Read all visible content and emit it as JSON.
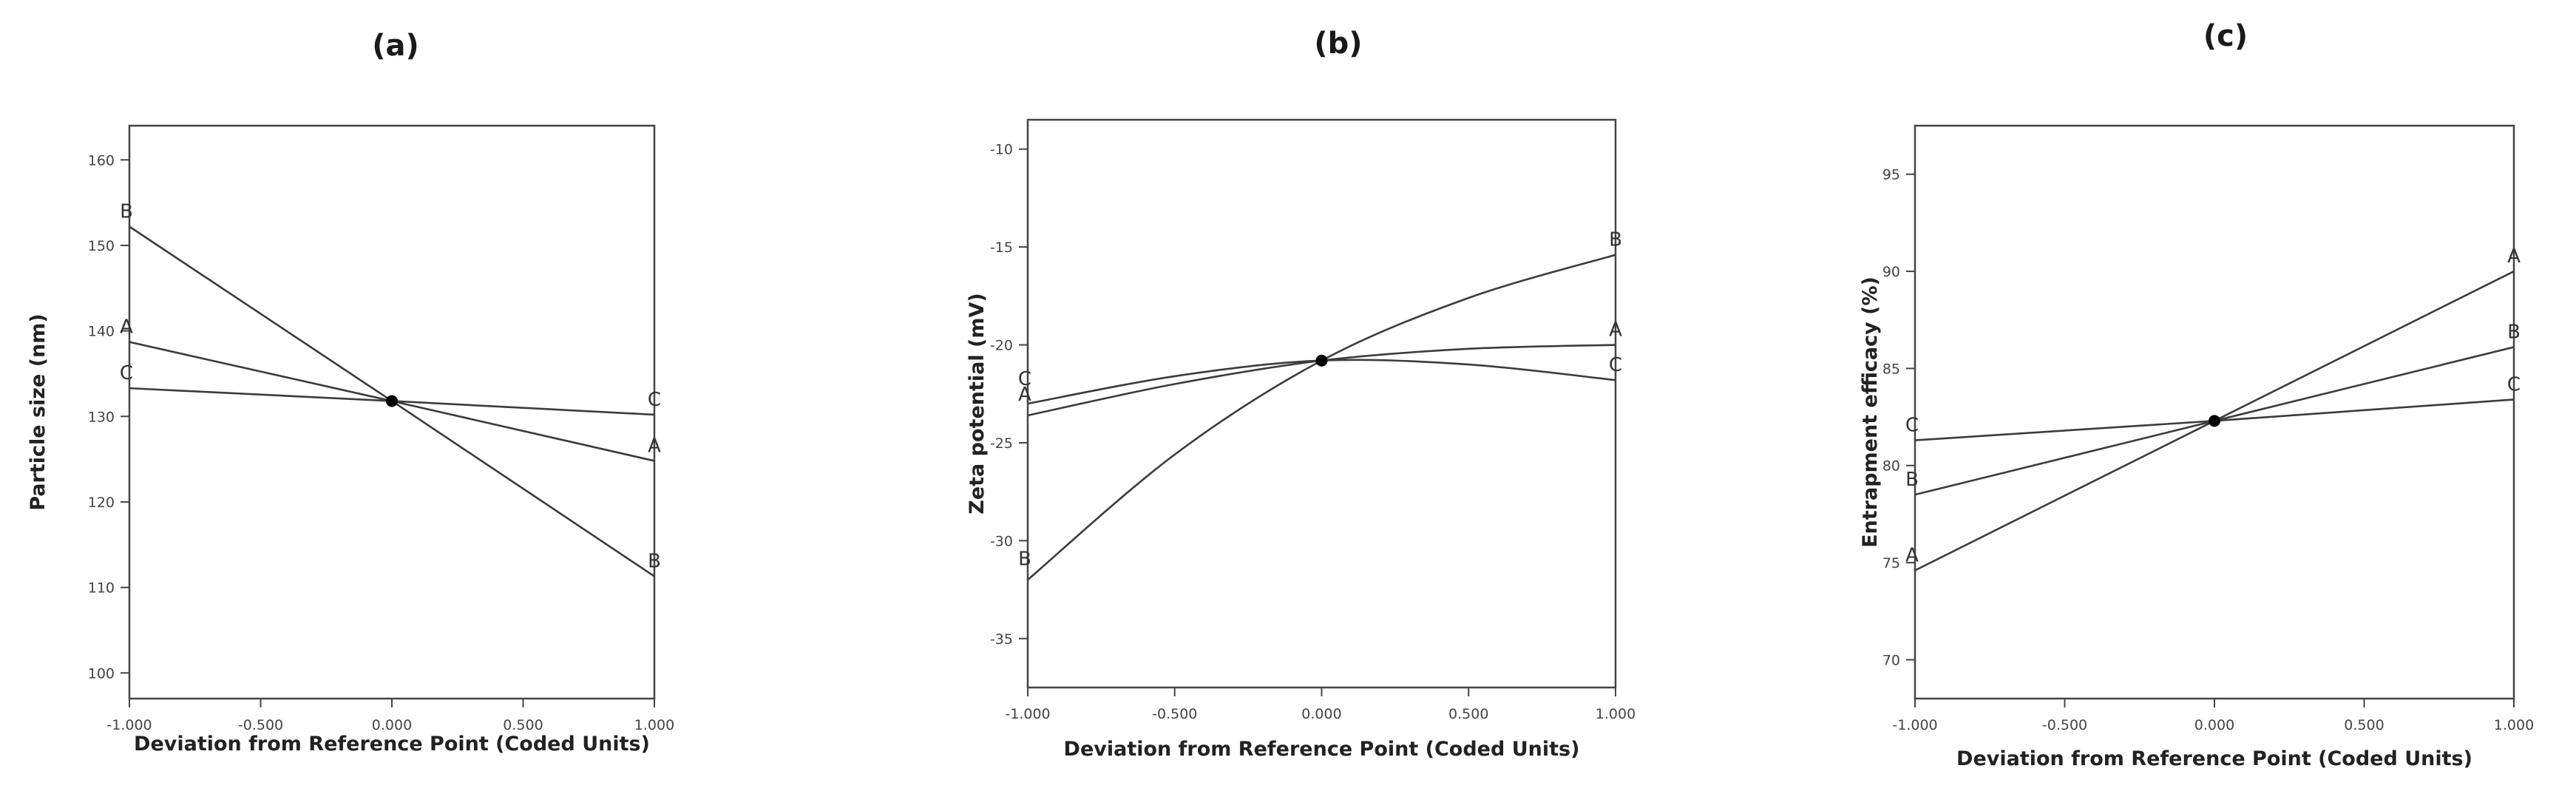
{
  "chart_data": [
    {
      "type": "line",
      "panel_label": "(a)",
      "xlabel": "Deviation from Reference Point (Coded Units)",
      "ylabel": "Particle size (nm)",
      "xlim": [
        -1.0,
        1.0
      ],
      "ylim": [
        97,
        164
      ],
      "x_ticks": [
        -1.0,
        -0.5,
        0.0,
        0.5,
        1.0
      ],
      "x_tick_labels": [
        "-1.000",
        "-0.500",
        "0.000",
        "0.500",
        "1.000"
      ],
      "y_ticks": [
        100,
        110,
        120,
        130,
        140,
        150,
        160
      ],
      "y_tick_labels": [
        "100",
        "110",
        "120",
        "130",
        "140",
        "150",
        "160"
      ],
      "reference_point": {
        "x": 0.0,
        "y": 131.8
      },
      "series": [
        {
          "name": "A",
          "x": [
            -1.0,
            0.0,
            1.0
          ],
          "y": [
            138.7,
            131.8,
            124.8
          ]
        },
        {
          "name": "B",
          "x": [
            -1.0,
            0.0,
            1.0
          ],
          "y": [
            152.2,
            131.8,
            111.3
          ]
        },
        {
          "name": "C",
          "x": [
            -1.0,
            0.0,
            1.0
          ],
          "y": [
            133.3,
            131.8,
            130.2
          ]
        }
      ],
      "end_labels": [
        {
          "name": "B",
          "x": -1.0,
          "y": 152.2
        },
        {
          "name": "A",
          "x": -1.0,
          "y": 138.7
        },
        {
          "name": "C",
          "x": -1.0,
          "y": 133.3
        },
        {
          "name": "C",
          "x": 1.0,
          "y": 130.2
        },
        {
          "name": "A",
          "x": 1.0,
          "y": 124.8
        },
        {
          "name": "B",
          "x": 1.0,
          "y": 111.3
        }
      ]
    },
    {
      "type": "line",
      "panel_label": "(b)",
      "xlabel": "Deviation from Reference Point (Coded Units)",
      "ylabel": "Zeta potential (mV)",
      "xlim": [
        -1.0,
        1.0
      ],
      "ylim": [
        -37.5,
        -8.5
      ],
      "x_ticks": [
        -1.0,
        -0.5,
        0.0,
        0.5,
        1.0
      ],
      "x_tick_labels": [
        "-1.000",
        "-0.500",
        "0.000",
        "0.500",
        "1.000"
      ],
      "y_ticks": [
        -35,
        -30,
        -25,
        -20,
        -15,
        -10
      ],
      "y_tick_labels": [
        "-35",
        "-30",
        "-25",
        "-20",
        "-15",
        "-10"
      ],
      "reference_point": {
        "x": 0.0,
        "y": -20.8
      },
      "series": [
        {
          "name": "A",
          "x": [
            -1.0,
            -0.5,
            0.0,
            0.5,
            1.0
          ],
          "y": [
            -23.6,
            -22.0,
            -20.8,
            -20.2,
            -20.0
          ]
        },
        {
          "name": "B",
          "x": [
            -1.0,
            -0.5,
            0.0,
            0.5,
            1.0
          ],
          "y": [
            -32.0,
            -25.6,
            -20.8,
            -17.6,
            -15.4
          ]
        },
        {
          "name": "C",
          "x": [
            -1.0,
            -0.5,
            0.0,
            0.5,
            1.0
          ],
          "y": [
            -23.0,
            -21.6,
            -20.8,
            -21.0,
            -21.8
          ]
        }
      ],
      "end_labels": [
        {
          "name": "C",
          "x": -1.0,
          "y": -22.5
        },
        {
          "name": "A",
          "x": -1.0,
          "y": -23.3
        },
        {
          "name": "B",
          "x": -1.0,
          "y": -31.7
        },
        {
          "name": "B",
          "x": 1.0,
          "y": -15.4
        },
        {
          "name": "A",
          "x": 1.0,
          "y": -20.0
        },
        {
          "name": "C",
          "x": 1.0,
          "y": -21.8
        }
      ]
    },
    {
      "type": "line",
      "panel_label": "(c)",
      "xlabel": "Deviation from Reference Point (Coded Units)",
      "ylabel": "Entrapment efficacy (%)",
      "xlim": [
        -1.0,
        1.0
      ],
      "ylim": [
        68,
        97.5
      ],
      "x_ticks": [
        -1.0,
        -0.5,
        0.0,
        0.5,
        1.0
      ],
      "x_tick_labels": [
        "-1.000",
        "-0.500",
        "0.000",
        "0.500",
        "1.000"
      ],
      "y_ticks": [
        70,
        75,
        80,
        85,
        90,
        95
      ],
      "y_tick_labels": [
        "70",
        "75",
        "80",
        "85",
        "90",
        "95"
      ],
      "reference_point": {
        "x": 0.0,
        "y": 82.3
      },
      "series": [
        {
          "name": "A",
          "x": [
            -1.0,
            0.0,
            1.0
          ],
          "y": [
            74.6,
            82.3,
            90.0
          ]
        },
        {
          "name": "B",
          "x": [
            -1.0,
            0.0,
            1.0
          ],
          "y": [
            78.5,
            82.3,
            86.1
          ]
        },
        {
          "name": "C",
          "x": [
            -1.0,
            0.0,
            1.0
          ],
          "y": [
            81.3,
            82.3,
            83.4
          ]
        }
      ],
      "end_labels": [
        {
          "name": "C",
          "x": -1.0,
          "y": 81.3
        },
        {
          "name": "B",
          "x": -1.0,
          "y": 78.5
        },
        {
          "name": "A",
          "x": -1.0,
          "y": 74.6
        },
        {
          "name": "A",
          "x": 1.0,
          "y": 90.0
        },
        {
          "name": "B",
          "x": 1.0,
          "y": 86.1
        },
        {
          "name": "C",
          "x": 1.0,
          "y": 83.4
        }
      ]
    }
  ]
}
